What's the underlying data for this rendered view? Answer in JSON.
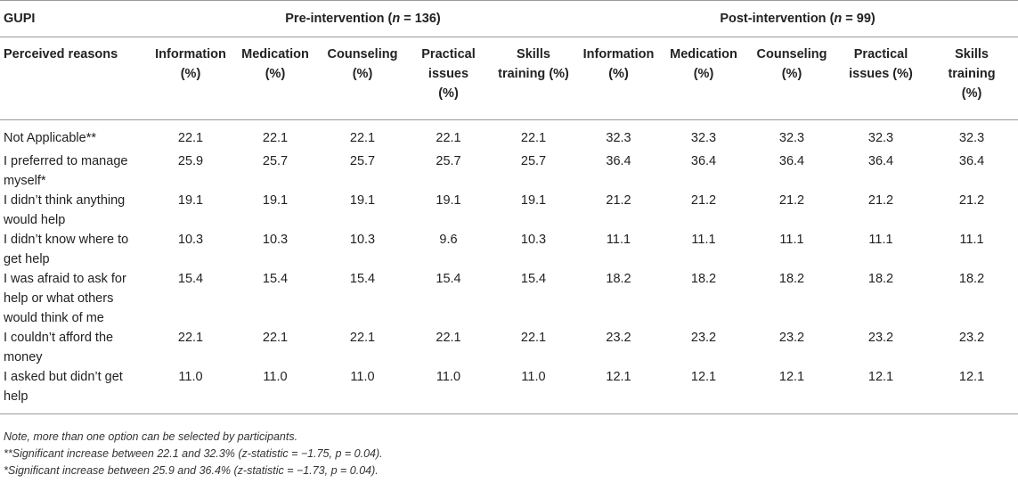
{
  "table": {
    "corner_top": "GUPI",
    "group_pre": "Pre-intervention (",
    "group_pre_n": "n",
    "group_pre_tail": " = 136)",
    "group_post": "Post-intervention (",
    "group_post_n": "n",
    "group_post_tail": " = 99)",
    "corner_sub": "Perceived reasons",
    "columns": [
      [
        "Information",
        "(%)"
      ],
      [
        "Medication",
        "(%)"
      ],
      [
        "Counseling",
        "(%)"
      ],
      [
        "Practical",
        "issues",
        "(%)"
      ],
      [
        "Skills",
        "training (%)"
      ],
      [
        "Information",
        "(%)"
      ],
      [
        "Medication",
        "(%)"
      ],
      [
        "Counseling",
        "(%)"
      ],
      [
        "Practical",
        "issues (%)"
      ],
      [
        "Skills",
        "training",
        "(%)"
      ]
    ],
    "rows": [
      {
        "label": [
          "Not Applicable**"
        ],
        "values": [
          "22.1",
          "22.1",
          "22.1",
          "22.1",
          "22.1",
          "32.3",
          "32.3",
          "32.3",
          "32.3",
          "32.3"
        ]
      },
      {
        "label": [
          "I preferred to manage",
          "myself*"
        ],
        "values": [
          "25.9",
          "25.7",
          "25.7",
          "25.7",
          "25.7",
          "36.4",
          "36.4",
          "36.4",
          "36.4",
          "36.4"
        ]
      },
      {
        "label": [
          "I didn’t think anything",
          "would help"
        ],
        "values": [
          "19.1",
          "19.1",
          "19.1",
          "19.1",
          "19.1",
          "21.2",
          "21.2",
          "21.2",
          "21.2",
          "21.2"
        ]
      },
      {
        "label": [
          "I didn’t know where to",
          "get help"
        ],
        "values": [
          "10.3",
          "10.3",
          "10.3",
          "9.6",
          "10.3",
          "11.1",
          "11.1",
          "11.1",
          "11.1",
          "11.1"
        ]
      },
      {
        "label": [
          "I was afraid to ask for",
          "help or what others",
          "would think of me"
        ],
        "values": [
          "15.4",
          "15.4",
          "15.4",
          "15.4",
          "15.4",
          "18.2",
          "18.2",
          "18.2",
          "18.2",
          "18.2"
        ]
      },
      {
        "label": [
          "I couldn’t afford the",
          "money"
        ],
        "values": [
          "22.1",
          "22.1",
          "22.1",
          "22.1",
          "22.1",
          "23.2",
          "23.2",
          "23.2",
          "23.2",
          "23.2"
        ]
      },
      {
        "label": [
          "I asked but didn’t get",
          "help"
        ],
        "values": [
          "11.0",
          "11.0",
          "11.0",
          "11.0",
          "11.0",
          "12.1",
          "12.1",
          "12.1",
          "12.1",
          "12.1"
        ]
      }
    ]
  },
  "notes": [
    "Note, more than one option can be selected by participants.",
    "**Significant increase between 22.1 and 32.3% (z-statistic = −1.75, p = 0.04).",
    "*Significant increase between 25.9 and 36.4% (z-statistic = −1.73, p = 0.04)."
  ]
}
